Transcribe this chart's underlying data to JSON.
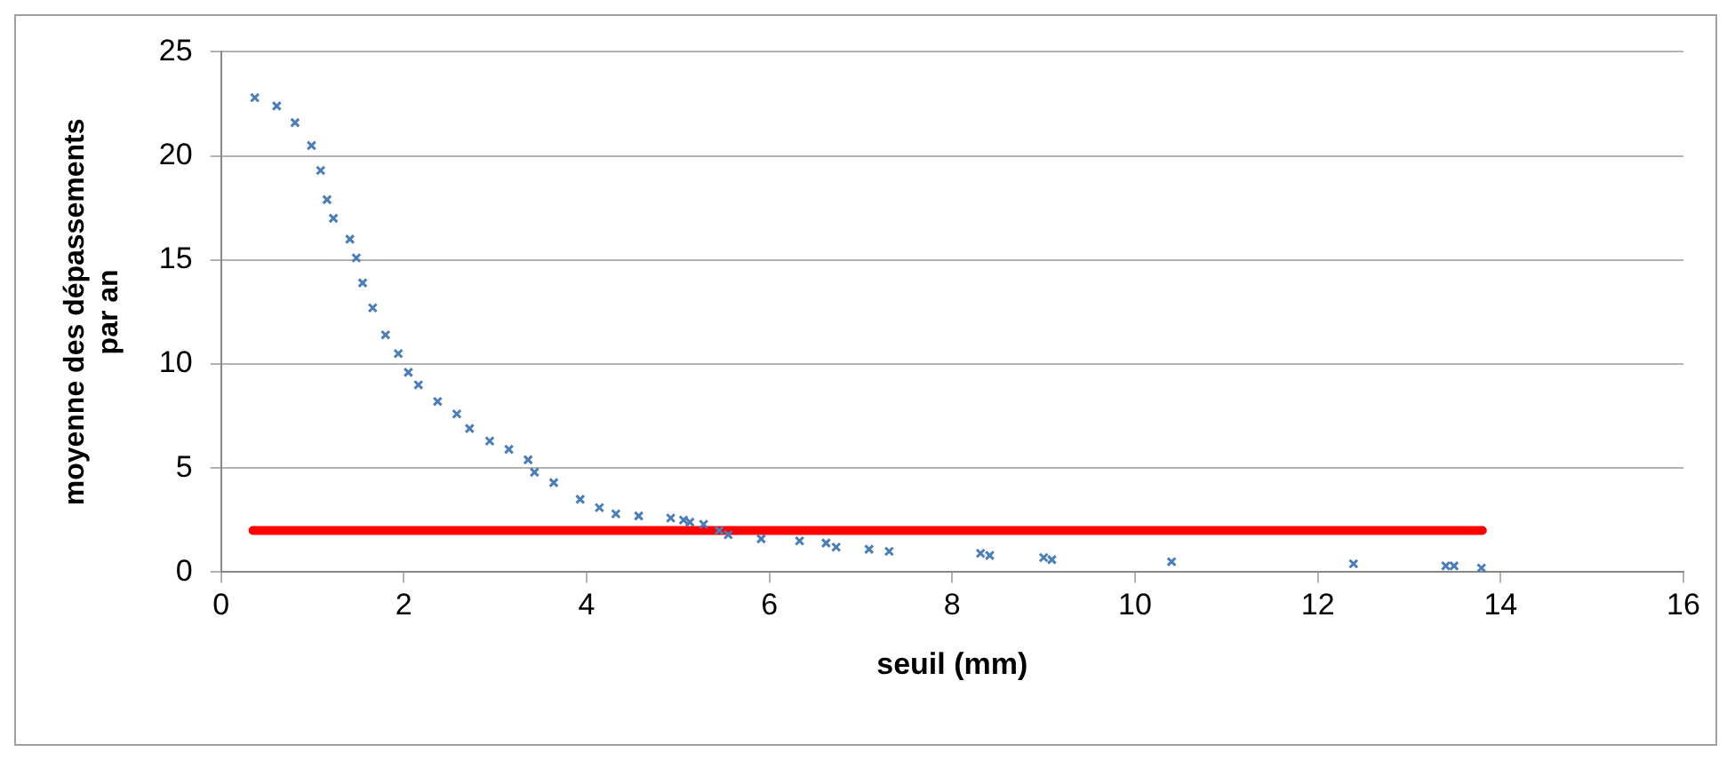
{
  "chart_data": {
    "type": "scatter",
    "xlabel": "seuil (mm)",
    "ylabel": "moyenne des dépassements par an",
    "xlim": [
      0,
      16
    ],
    "xticks": [
      0,
      2,
      4,
      6,
      8,
      10,
      12,
      14,
      16
    ],
    "ylim": [
      0,
      25
    ],
    "yticks": [
      0,
      5,
      10,
      15,
      20,
      25
    ],
    "grid": "y",
    "legend": false,
    "marker": "cross",
    "series": [
      {
        "color": "#4a7ebb",
        "x": [
          0.37,
          0.61,
          0.81,
          0.99,
          1.09,
          1.16,
          1.23,
          1.41,
          1.48,
          1.55,
          1.66,
          1.8,
          1.94,
          2.05,
          2.16,
          2.37,
          2.58,
          2.72,
          2.94,
          3.15,
          3.36,
          3.43,
          3.64,
          3.93,
          4.14,
          4.32,
          4.57,
          4.92,
          5.06,
          5.13,
          5.28,
          5.45,
          5.55,
          5.91,
          6.33,
          6.62,
          6.73,
          7.09,
          7.31,
          8.31,
          8.41,
          9.0,
          9.09,
          10.4,
          12.39,
          13.4,
          13.49,
          13.79
        ],
        "values": [
          22.8,
          22.4,
          21.6,
          20.5,
          19.3,
          17.9,
          17.0,
          16.0,
          15.1,
          13.9,
          12.7,
          11.4,
          10.5,
          9.6,
          9.0,
          8.2,
          7.6,
          6.9,
          6.3,
          5.9,
          5.4,
          4.8,
          4.3,
          3.5,
          3.1,
          2.8,
          2.7,
          2.6,
          2.5,
          2.4,
          2.3,
          2.0,
          1.8,
          1.6,
          1.5,
          1.4,
          1.2,
          1.1,
          1.0,
          0.9,
          0.8,
          0.7,
          0.6,
          0.5,
          0.4,
          0.3,
          0.3,
          0.2
        ]
      },
      {
        "type": "line",
        "marker": "none",
        "color": "#ff0000",
        "x": [
          0.35,
          13.8
        ],
        "values": [
          2,
          2
        ]
      }
    ]
  }
}
